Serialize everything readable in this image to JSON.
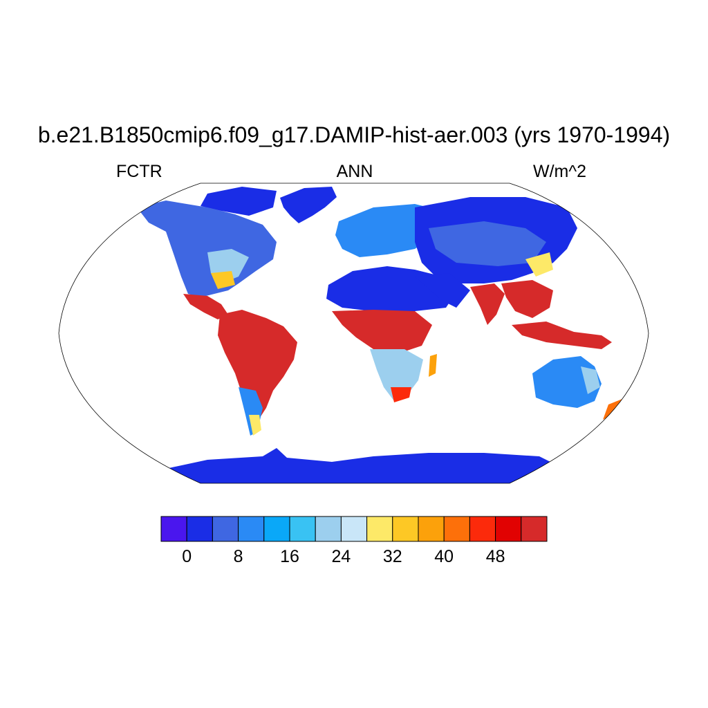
{
  "title": "b.e21.B1850cmip6.f09_g17.DAMIP-hist-aer.003 (yrs 1970-1994)",
  "left_label": "FCTR",
  "center_label": "ANN",
  "right_label": "W/m^2",
  "map": {
    "projection": "Robinson",
    "variable": "FCTR",
    "season": "ANN",
    "units": "W/m^2",
    "land_regions": [
      {
        "name": "North America",
        "level": "low-mid"
      },
      {
        "name": "Greenland",
        "level": "low"
      },
      {
        "name": "Central America",
        "level": "high"
      },
      {
        "name": "South America",
        "level": "high"
      },
      {
        "name": "Europe",
        "level": "low-mid"
      },
      {
        "name": "Sahara",
        "level": "low"
      },
      {
        "name": "Central Africa",
        "level": "high"
      },
      {
        "name": "Southern Africa",
        "level": "mid"
      },
      {
        "name": "Asia",
        "level": "low"
      },
      {
        "name": "South Asia",
        "level": "high"
      },
      {
        "name": "Maritime Continent",
        "level": "high"
      },
      {
        "name": "Australia",
        "level": "mid"
      },
      {
        "name": "New Zealand",
        "level": "mid-high"
      },
      {
        "name": "Antarctica",
        "level": "low"
      }
    ]
  },
  "colorbar": {
    "colors": [
      "#4a16ee",
      "#1a2de6",
      "#3f67e2",
      "#2a8af5",
      "#0aa8f8",
      "#39c2f3",
      "#9ccfee",
      "#c9e6f8",
      "#fde968",
      "#fdc825",
      "#fca10b",
      "#fd700a",
      "#fc2a0b",
      "#e10202",
      "#d62a2a"
    ],
    "tick_labels": [
      "0",
      "8",
      "16",
      "24",
      "32",
      "40",
      "48"
    ]
  }
}
